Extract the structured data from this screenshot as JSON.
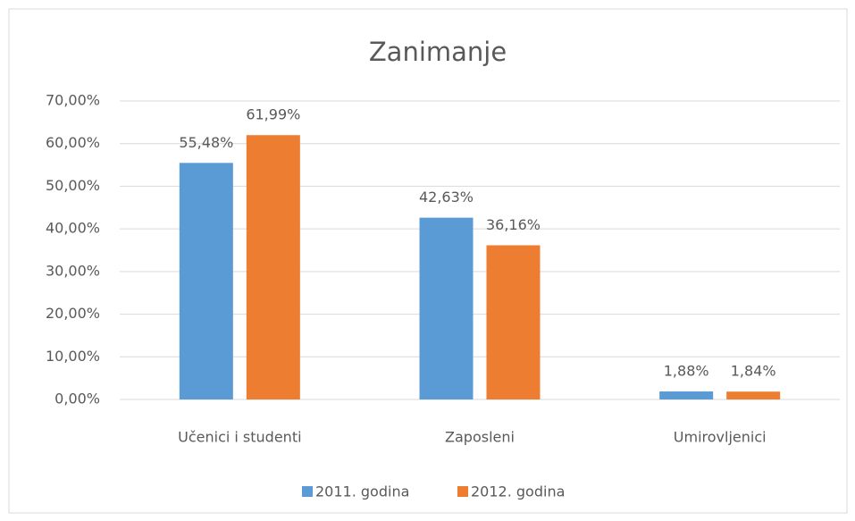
{
  "chart_data": {
    "type": "bar",
    "title": "Zanimanje",
    "categories": [
      "Učenici i studenti",
      "Zaposleni",
      "Umirovljenici"
    ],
    "series": [
      {
        "name": "2011. godina",
        "color": "#5b9bd5",
        "values": [
          55.48,
          42.63,
          1.88
        ],
        "value_labels": [
          "55,48%",
          "42,63%",
          "1,88%"
        ]
      },
      {
        "name": "2012. godina",
        "color": "#ed7d31",
        "values": [
          61.99,
          36.16,
          1.84
        ],
        "value_labels": [
          "61,99%",
          "36,16%",
          "1,84%"
        ]
      }
    ],
    "ylim": [
      0,
      70
    ],
    "yticks": [
      {
        "value": 0,
        "label": "0,00%"
      },
      {
        "value": 10,
        "label": "10,00%"
      },
      {
        "value": 20,
        "label": "20,00%"
      },
      {
        "value": 30,
        "label": "30,00%"
      },
      {
        "value": 40,
        "label": "40,00%"
      },
      {
        "value": 50,
        "label": "50,00%"
      },
      {
        "value": 60,
        "label": "60,00%"
      },
      {
        "value": 70,
        "label": "70,00%"
      }
    ],
    "grid": true,
    "legend": "bottom"
  }
}
